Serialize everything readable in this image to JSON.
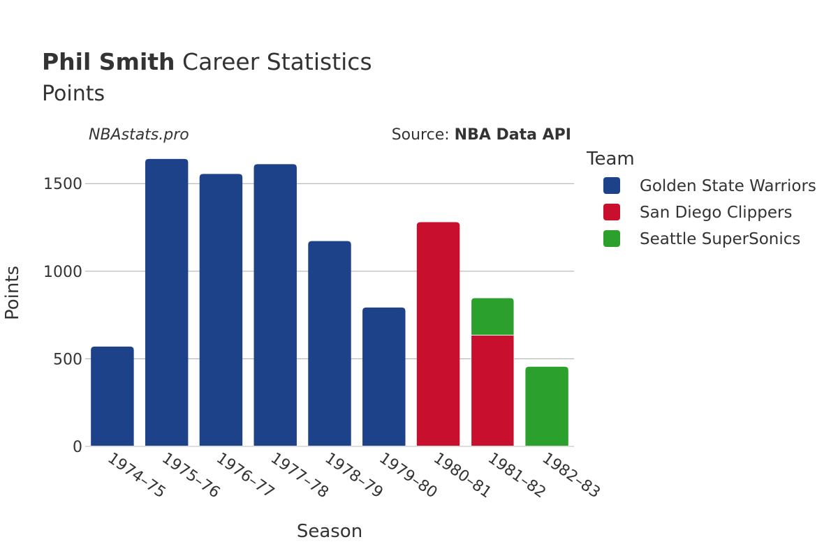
{
  "header": {
    "title_bold": "Phil Smith",
    "title_rest": " Career Statistics",
    "subtitle": "Points"
  },
  "watermark": "NBAstats.pro",
  "source": {
    "prefix": "Source: ",
    "name": "NBA Data API"
  },
  "legend": {
    "title": "Team",
    "items": [
      {
        "label": "Golden State Warriors",
        "color": "#1d428a"
      },
      {
        "label": "San Diego Clippers",
        "color": "#c8102e"
      },
      {
        "label": "Seattle SuperSonics",
        "color": "#2ca02c"
      }
    ]
  },
  "chart_data": {
    "type": "bar",
    "stacked": true,
    "categories": [
      "1974–75",
      "1975–76",
      "1976–77",
      "1977–78",
      "1978–79",
      "1979–80",
      "1980–81",
      "1981–82",
      "1982–83"
    ],
    "series": [
      {
        "name": "Golden State Warriors",
        "color": "#1d428a",
        "values": [
          570,
          1641,
          1555,
          1611,
          1172,
          793,
          0,
          0,
          0
        ]
      },
      {
        "name": "San Diego Clippers",
        "color": "#c8102e",
        "values": [
          0,
          0,
          0,
          0,
          0,
          0,
          1280,
          635,
          0
        ]
      },
      {
        "name": "Seattle SuperSonics",
        "color": "#2ca02c",
        "values": [
          0,
          0,
          0,
          0,
          0,
          0,
          0,
          213,
          455
        ]
      }
    ],
    "xlabel": "Season",
    "ylabel": "Points",
    "ylim": [
      0,
      1700
    ],
    "yticks": [
      0,
      500,
      1000,
      1500
    ],
    "grid": true,
    "legend_position": "right"
  }
}
